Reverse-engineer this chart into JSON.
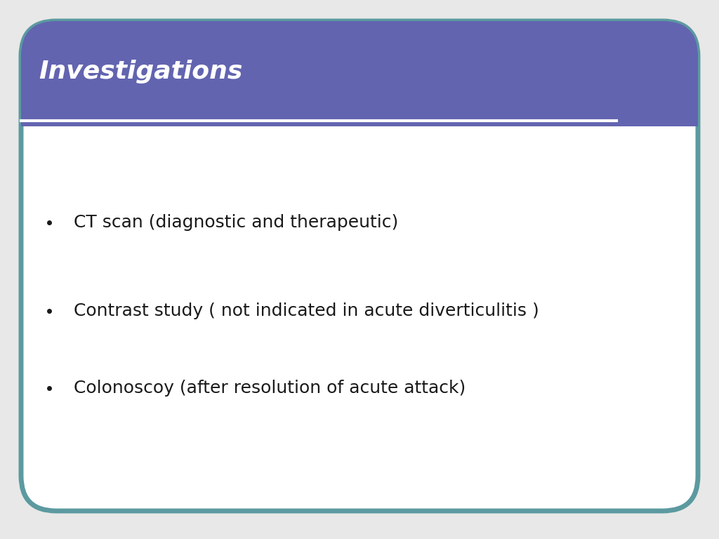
{
  "title": "Investigations",
  "title_color": "#ffffff",
  "title_bg_color": "#6264b0",
  "title_fontsize": 26,
  "bullet_points": [
    "CT scan (diagnostic and therapeutic)",
    "Contrast study ( not indicated in acute diverticulitis )",
    "Colonoscoy (after resolution of acute attack)"
  ],
  "bullet_fontsize": 18,
  "bullet_color": "#1a1a1a",
  "slide_bg_color": "#e8e8e8",
  "inner_bg_color": "#ffffff",
  "border_color": "#5b9aa0",
  "separator_color": "#ffffff",
  "fig_width": 10.24,
  "fig_height": 7.68
}
